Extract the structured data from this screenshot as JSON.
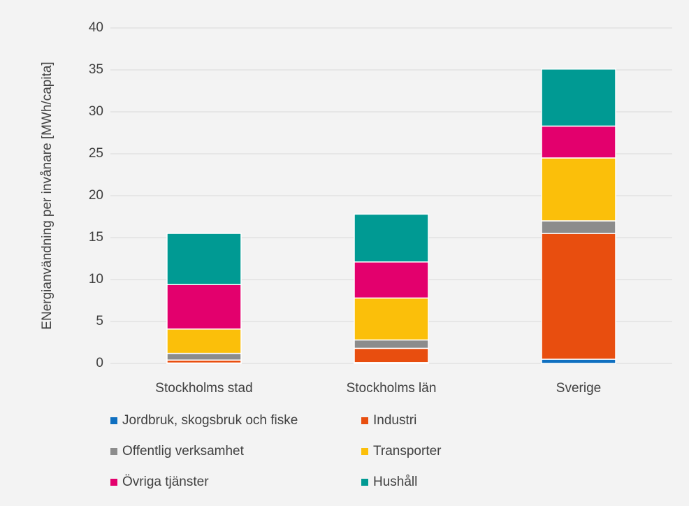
{
  "chart_data": {
    "type": "stacked_bar",
    "y_label": "ENergianvändning per invånare [MWh/capita]",
    "categories": [
      "Stockholms stad",
      "Stockholms län",
      "Sverige"
    ],
    "series": [
      {
        "name": "Jordbruk, skogsbruk och fiske",
        "color": "#0f6fc0",
        "values": [
          0.05,
          0.1,
          0.5
        ]
      },
      {
        "name": "Industri",
        "color": "#e84e0f",
        "values": [
          0.35,
          1.7,
          15.0
        ]
      },
      {
        "name": "Offentlig verksamhet",
        "color": "#8c8c8c",
        "values": [
          0.8,
          1.0,
          1.5
        ]
      },
      {
        "name": "Transporter",
        "color": "#fbbf0a",
        "values": [
          2.9,
          5.0,
          7.5
        ]
      },
      {
        "name": "Övriga tjänster",
        "color": "#e3006d",
        "values": [
          5.3,
          4.3,
          3.8
        ]
      },
      {
        "name": "Hushåll",
        "color": "#009a93",
        "values": [
          6.1,
          5.7,
          6.8
        ]
      }
    ],
    "ylim": [
      0,
      40
    ],
    "yticks": [
      0,
      5,
      10,
      15,
      20,
      25,
      30,
      35,
      40
    ],
    "grid": true,
    "legend": "bottom"
  }
}
